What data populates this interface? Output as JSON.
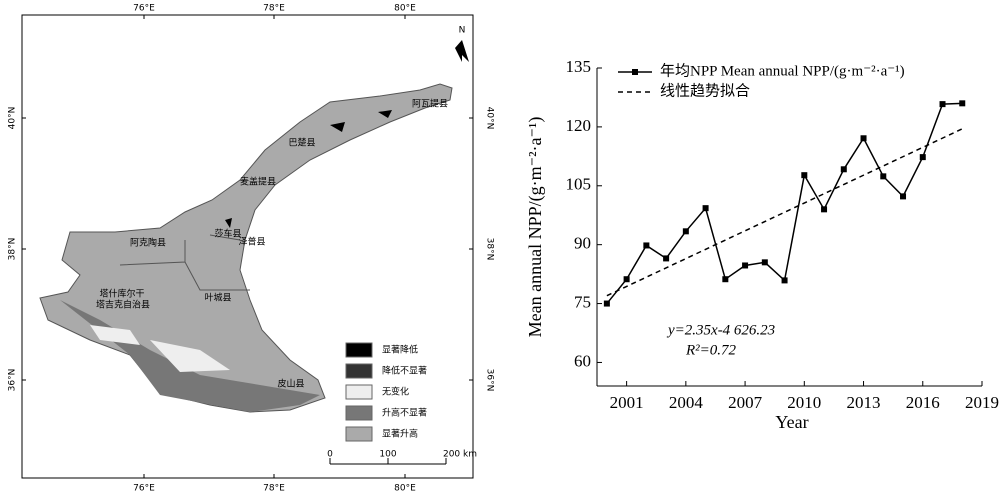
{
  "map": {
    "north": "N",
    "lon_ticks": [
      "76°E",
      "78°E",
      "80°E"
    ],
    "lat_ticks": [
      "40°N",
      "38°N",
      "36°N"
    ],
    "counties": [
      "阿瓦提县",
      "巴楚县",
      "麦盖提县",
      "莎车县",
      "泽普县",
      "阿克陶县",
      "叶城县",
      "塔什库尔干",
      "塔吉克自治县",
      "皮山县"
    ],
    "legend": [
      {
        "label": "显著降低",
        "color": "#000000"
      },
      {
        "label": "降低不显著",
        "color": "#333333"
      },
      {
        "label": "无变化",
        "color": "#eeeeee"
      },
      {
        "label": "升高不显著",
        "color": "#777777"
      },
      {
        "label": "显著升高",
        "color": "#aaaaaa"
      }
    ],
    "scale_labels": [
      "0",
      "100",
      "200 km"
    ]
  },
  "chart_data": {
    "type": "line",
    "x_label": "Year",
    "y_label": "Mean annual NPP/(g·m⁻²·a⁻¹)",
    "xlim": [
      1999.5,
      2019
    ],
    "xticks": [
      2001,
      2004,
      2007,
      2010,
      2013,
      2016,
      2019
    ],
    "ylim": [
      54,
      135
    ],
    "yticks": [
      60,
      75,
      90,
      105,
      120,
      135
    ],
    "series": [
      {
        "name": "年均NPP Mean annual NPP/(g·m⁻²·a⁻¹)",
        "color": "#000000",
        "marker": "square",
        "x": [
          2000,
          2001,
          2002,
          2003,
          2004,
          2005,
          2006,
          2007,
          2008,
          2009,
          2010,
          2011,
          2012,
          2013,
          2014,
          2015,
          2016,
          2017,
          2018
        ],
        "values": [
          75,
          81.2,
          89.8,
          86.5,
          93.4,
          99.3,
          81.2,
          84.7,
          85.5,
          80.9,
          107.7,
          99,
          109.2,
          117.1,
          107.4,
          102.3,
          112.3,
          125.8,
          126
        ]
      },
      {
        "name": "线性趋势拟合",
        "color": "#000000",
        "dashed": true,
        "x": [
          2000,
          2018
        ],
        "values": [
          77,
          119.5
        ]
      }
    ],
    "annotations": [
      "y=2.35x-4 626.23",
      "R²=0.72"
    ]
  }
}
